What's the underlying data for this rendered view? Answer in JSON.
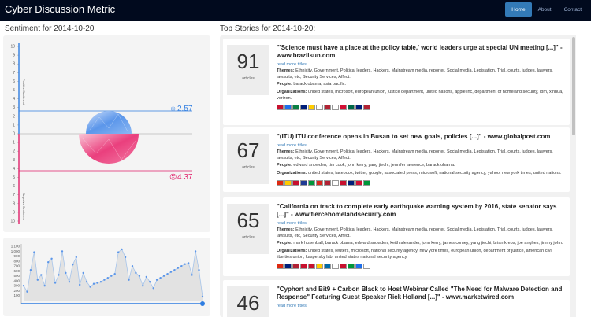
{
  "app": {
    "brand": "Cyber Discussion Metric",
    "nav": [
      "Home",
      "About",
      "Contact"
    ]
  },
  "sentiment": {
    "title": "Sentiment for 2014-10-20",
    "y_ticks": [
      "10",
      "9",
      "8",
      "7",
      "6",
      "5",
      "4",
      "3",
      "2",
      "1",
      "0",
      "1",
      "2",
      "3",
      "4",
      "5",
      "6",
      "7",
      "8",
      "9",
      "10"
    ],
    "positive_label": "Positive Sentiment",
    "negative_label": "Negative Sentiment",
    "positive_value": "2.57",
    "negative_value": "4.37",
    "positive_color": "#2e7de1",
    "negative_color": "#e0206a"
  },
  "timeline": {
    "y_ticks": [
      "1,100",
      "1,000",
      "900",
      "800",
      "700",
      "600",
      "500",
      "400",
      "300",
      "200",
      "100"
    ]
  },
  "chart_data": {
    "type": "area",
    "title": "",
    "xlabel": "",
    "ylabel": "",
    "ylim": [
      0,
      1150
    ],
    "values": [
      300,
      180,
      620,
      980,
      420,
      520,
      300,
      780,
      850,
      360,
      520,
      1000,
      560,
      380,
      730,
      880,
      320,
      560,
      380,
      280,
      340,
      360,
      380,
      420,
      460,
      500,
      540,
      980,
      1040,
      880,
      420,
      700,
      560,
      500,
      300,
      480,
      380,
      250,
      420,
      460,
      500,
      540,
      580,
      620,
      660,
      700,
      740,
      760,
      520,
      1000,
      620,
      80
    ]
  },
  "stories": {
    "title": "Top Stories for 2014-10-20:",
    "items": [
      {
        "count": "91",
        "count_label": "articles",
        "headline": "\"'Science must have a place at the policy table,' world leaders urge at special UN meeting [...]\" - www.brazilsun.com",
        "read_more": "read more titles",
        "themes_label": "Themes:",
        "themes": "Ethnicity, Government, Political leaders, Hackers, Mainstream media, reporter, Social media, Legislation, Trial, courts, judges, lawyers, lawsuits, etc, Security Services, Affect.",
        "people_label": "People:",
        "people": "barack obama, asia pacific.",
        "orgs_label": "Organizations:",
        "orgs": "united states, microsoft, european union, justice department, united nations, apple inc, department of homeland security, ibm, xinhua, verizon.",
        "flags": [
          "#c8102e",
          "#1f6feb",
          "#0b8043",
          "#001f7a",
          "#ffcc00",
          "#ffffff",
          "#b22234",
          "#ffffff",
          "#d21034",
          "#006847",
          "#001f7a",
          "#b22234"
        ]
      },
      {
        "count": "67",
        "count_label": "articles",
        "headline": "\"(ITU) ITU conference opens in Busan to set new goals, policies [...]\" - www.globalpost.com",
        "read_more": "read more titles",
        "themes_label": "Themes:",
        "themes": "Ethnicity, Government, Political leaders, Hackers, Mainstream media, reporter, Social media, Legislation, Trial, courts, judges, lawyers, lawsuits, etc, Security Services, Affect.",
        "people_label": "People:",
        "people": "edward snowden, tim cook, john kerry, yang jiechi, jennifer lawrence, barack obama.",
        "orgs_label": "Organizations:",
        "orgs": "united states, facebook, twitter, google, associated press, microsoft, national security agency, yahoo, new york times, united nations.",
        "flags": [
          "#de2910",
          "#ffcc00",
          "#c8102e",
          "#1f3a93",
          "#009639",
          "#da251d",
          "#b22234",
          "#ffffff",
          "#c8102e",
          "#001f7a",
          "#d21034",
          "#009639"
        ]
      },
      {
        "count": "65",
        "count_label": "articles",
        "headline": "\"California on track to complete early earthquake warning system by 2016, state senator says [...]\" - www.fiercehomelandsecurity.com",
        "read_more": "read more titles",
        "themes_label": "Themes:",
        "themes": "Ethnicity, Government, Political leaders, Hackers, Mainstream media, reporter, Social media, Legislation, Trial, courts, judges, lawyers, lawsuits, etc, Security Services, Affect.",
        "people_label": "People:",
        "people": "mark hosenball, barack obama, edward snowden, keith alexander, john kerry, james comey, yang jiechi, brian krebs, joe anghes, jimmy john.",
        "orgs_label": "Organizations:",
        "orgs": "united states, reuters, microsoft, national security agency, new york times, european union, department of justice, american civil liberties union, kaspersky lab, united states national security agency.",
        "flags": [
          "#de2910",
          "#001f7a",
          "#b22234",
          "#c8102e",
          "#c8102e",
          "#ffcc00",
          "#006aa7",
          "#ffffff",
          "#c8102e",
          "#009639",
          "#1f6feb",
          "#ffffff"
        ]
      },
      {
        "count": "46",
        "count_label": "articles",
        "headline": "\"Cyphort and Bit9 + Carbon Black to Host Webinar Called \"The Need for Malware Detection and Response\" Featuring Guest Speaker Rick Holland [...]\" - www.marketwired.com",
        "read_more": "read more titles",
        "themes_label": "",
        "themes": "",
        "people_label": "",
        "people": "",
        "orgs_label": "",
        "orgs": "",
        "flags": []
      }
    ]
  }
}
